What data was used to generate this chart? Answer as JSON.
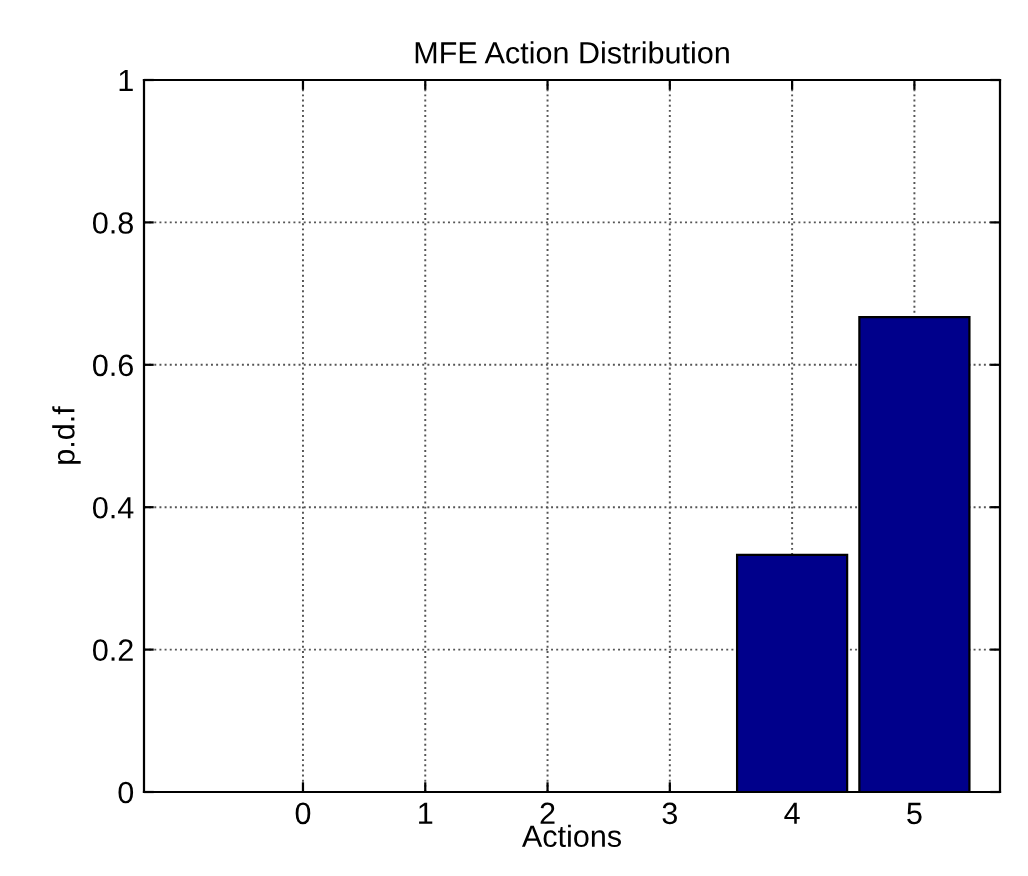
{
  "chart_data": {
    "type": "bar",
    "title": "MFE Action Distribution",
    "xlabel": "Actions",
    "ylabel": "p.d.f",
    "x": [
      0,
      1,
      2,
      3,
      4,
      5
    ],
    "series": [
      {
        "color": "#00008b",
        "values": [
          0,
          0,
          0,
          0,
          0.333,
          0.667
        ]
      }
    ],
    "xlim": [
      -1.3,
      5.7
    ],
    "xticks": [
      0,
      1,
      2,
      3,
      4,
      5
    ],
    "ylim": [
      0,
      1
    ],
    "yticks": [
      0,
      0.2,
      0.4,
      0.6,
      0.8,
      1
    ],
    "grid": true,
    "line_style": "dotted"
  }
}
